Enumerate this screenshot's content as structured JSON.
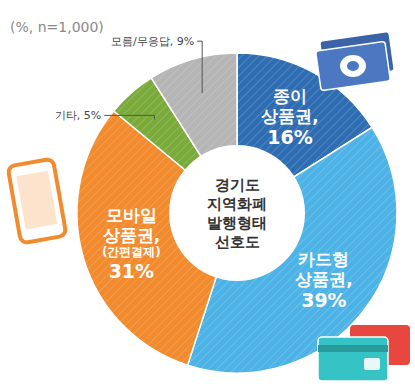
{
  "chart_data": {
    "type": "pie",
    "title": "경기도 지역화폐 발행형태 선호도",
    "subtitle": "(%, n=1,000)",
    "categories": [
      "종이 상품권,",
      "카드형 상품권,",
      "모바일 상품권, (간편결제)",
      "기타,",
      "모름/무응답,"
    ],
    "values": [
      16,
      39,
      31,
      5,
      9
    ],
    "value_labels": [
      "16%",
      "39%",
      "31%",
      "5%",
      "9%"
    ],
    "colors": [
      "#2f6db3",
      "#4db3e6",
      "#f28a2e",
      "#7aab3a",
      "#b5b5b5"
    ],
    "data_labels": true
  }
}
